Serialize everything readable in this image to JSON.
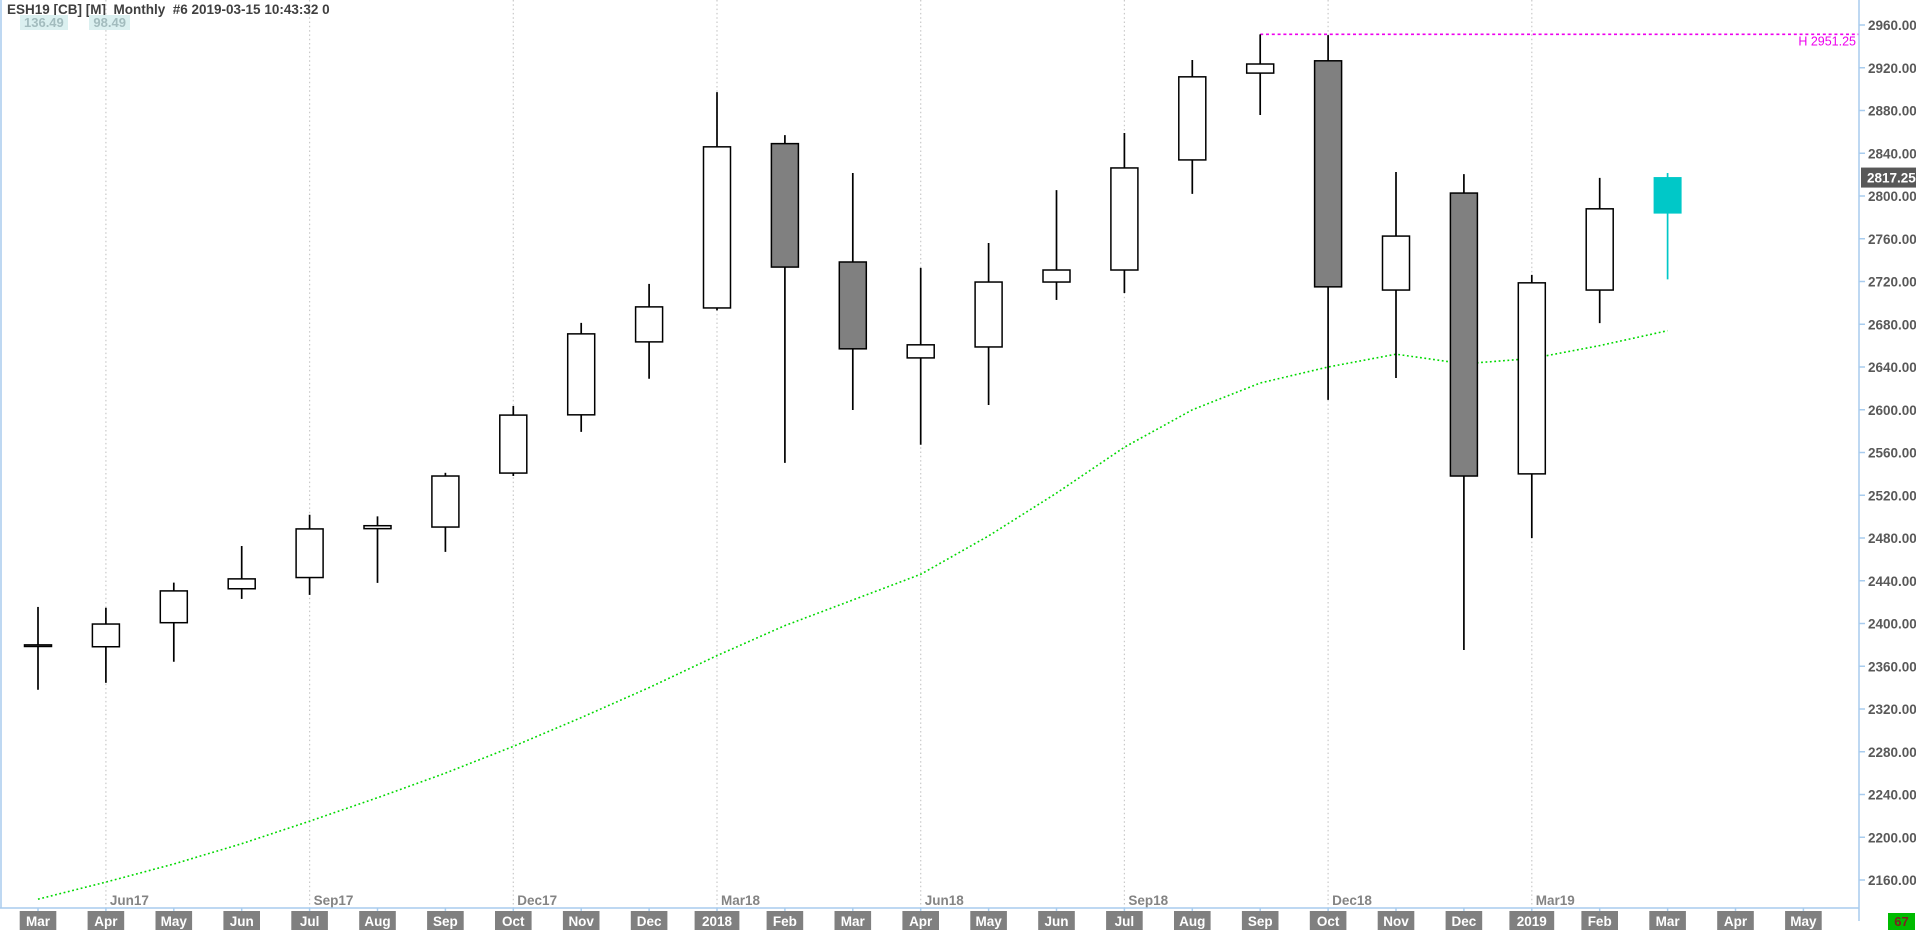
{
  "header": {
    "title": "ESH19 [CB] [M]  Monthly  #6 2019-03-15 10:43:32 0",
    "indicator_values": [
      "136.49",
      "98.49"
    ]
  },
  "counter_badge": "67",
  "colors": {
    "up_fill": "#ffffff",
    "down_fill": "#808080",
    "candle_outline": "#000000",
    "current_candle": "#00c8c8",
    "ma_line": "#00d800",
    "high_line": "#ee00ee",
    "axis_line": "#a8ccee",
    "grid_line": "#c9c9c9",
    "month_badge_bg": "#808080",
    "month_badge_text": "#ffffff",
    "axis_text": "#595959",
    "quarter_label_text": "#848484",
    "last_price_bg": "#585858",
    "last_price_text": "#ffffff"
  },
  "chart_data": {
    "type": "candlestick",
    "title": "ESH19 [CB] [M] Monthly",
    "legend_position": "none",
    "grid": "quarterly-vertical-dotted",
    "y_axis": {
      "min": 2160,
      "max": 2960,
      "step": 40,
      "tick_labels": [
        "2960.00",
        "2920.00",
        "2880.00",
        "2840.00",
        "2800.00",
        "2760.00",
        "2720.00",
        "2680.00",
        "2640.00",
        "2600.00",
        "2560.00",
        "2520.00",
        "2480.00",
        "2440.00",
        "2400.00",
        "2360.00",
        "2320.00",
        "2280.00",
        "2240.00",
        "2200.00",
        "2160.00"
      ]
    },
    "x_axis_labels": [
      "Mar",
      "Apr",
      "May",
      "Jun",
      "Jul",
      "Aug",
      "Sep",
      "Oct",
      "Nov",
      "Dec",
      "2018",
      "Feb",
      "Mar",
      "Apr",
      "May",
      "Jun",
      "Jul",
      "Aug",
      "Sep",
      "Oct",
      "Nov",
      "Dec",
      "2019",
      "Feb",
      "Mar",
      "Apr",
      "May"
    ],
    "quarter_gridlines": [
      {
        "slot": 1,
        "label": "Jun17"
      },
      {
        "slot": 4,
        "label": "Sep17"
      },
      {
        "slot": 7,
        "label": "Dec17"
      },
      {
        "slot": 10,
        "label": "Mar18"
      },
      {
        "slot": 13,
        "label": "Jun18"
      },
      {
        "slot": 16,
        "label": "Sep18"
      },
      {
        "slot": 19,
        "label": "Dec18"
      },
      {
        "slot": 22,
        "label": "Mar19"
      }
    ],
    "candles": [
      {
        "label": "Mar17",
        "o": 2379.0,
        "h": 2415.5,
        "l": 2338.0,
        "c": 2380.0,
        "dir": "up"
      },
      {
        "label": "Apr17",
        "o": 2378.25,
        "h": 2414.75,
        "l": 2344.5,
        "c": 2399.5,
        "dir": "up"
      },
      {
        "label": "May17",
        "o": 2400.75,
        "h": 2438.25,
        "l": 2364.25,
        "c": 2430.5,
        "dir": "up"
      },
      {
        "label": "Jun17",
        "o": 2432.5,
        "h": 2472.5,
        "l": 2423.0,
        "c": 2441.75,
        "dir": "up"
      },
      {
        "label": "Jul17",
        "o": 2443.0,
        "h": 2501.75,
        "l": 2426.75,
        "c": 2488.5,
        "dir": "up"
      },
      {
        "label": "Aug17",
        "o": 2488.75,
        "h": 2500.25,
        "l": 2438.0,
        "c": 2491.5,
        "dir": "up"
      },
      {
        "label": "Sep17",
        "o": 2490.25,
        "h": 2541.0,
        "l": 2467.0,
        "c": 2538.0,
        "dir": "up"
      },
      {
        "label": "Oct17",
        "o": 2540.75,
        "h": 2603.5,
        "l": 2538.0,
        "c": 2595.0,
        "dir": "up"
      },
      {
        "label": "Nov17",
        "o": 2595.25,
        "h": 2681.25,
        "l": 2579.25,
        "c": 2671.0,
        "dir": "up"
      },
      {
        "label": "Dec17",
        "o": 2663.5,
        "h": 2717.75,
        "l": 2629.0,
        "c": 2696.25,
        "dir": "up"
      },
      {
        "label": "Jan18",
        "o": 2695.25,
        "h": 2897.25,
        "l": 2693.0,
        "c": 2846.0,
        "dir": "up"
      },
      {
        "label": "Feb18",
        "o": 2849.0,
        "h": 2857.0,
        "l": 2550.25,
        "c": 2733.5,
        "dir": "down"
      },
      {
        "label": "Mar18",
        "o": 2738.25,
        "h": 2821.5,
        "l": 2599.75,
        "c": 2657.0,
        "dir": "down"
      },
      {
        "label": "Apr18",
        "o": 2648.5,
        "h": 2732.75,
        "l": 2567.25,
        "c": 2660.75,
        "dir": "up"
      },
      {
        "label": "May18",
        "o": 2658.75,
        "h": 2756.0,
        "l": 2604.5,
        "c": 2719.5,
        "dir": "up"
      },
      {
        "label": "Jun18",
        "o": 2719.5,
        "h": 2805.5,
        "l": 2702.75,
        "c": 2730.75,
        "dir": "up"
      },
      {
        "label": "Jul18",
        "o": 2730.75,
        "h": 2859.0,
        "l": 2709.25,
        "c": 2826.25,
        "dir": "up"
      },
      {
        "label": "Aug18",
        "o": 2833.75,
        "h": 2927.25,
        "l": 2802.0,
        "c": 2911.5,
        "dir": "up"
      },
      {
        "label": "Sep18",
        "o": 2915.0,
        "h": 2951.25,
        "l": 2875.75,
        "c": 2923.5,
        "dir": "up"
      },
      {
        "label": "Oct18",
        "o": 2926.5,
        "h": 2950.5,
        "l": 2609.25,
        "c": 2715.0,
        "dir": "down"
      },
      {
        "label": "Nov18",
        "o": 2712.0,
        "h": 2822.5,
        "l": 2629.75,
        "c": 2762.5,
        "dir": "up"
      },
      {
        "label": "Dec18",
        "o": 2802.75,
        "h": 2820.5,
        "l": 2375.25,
        "c": 2538.0,
        "dir": "down"
      },
      {
        "label": "Jan19",
        "o": 2540.0,
        "h": 2726.25,
        "l": 2480.0,
        "c": 2718.75,
        "dir": "up"
      },
      {
        "label": "Feb19",
        "o": 2712.0,
        "h": 2817.0,
        "l": 2681.0,
        "c": 2788.0,
        "dir": "up"
      },
      {
        "label": "Mar19",
        "o": 2784.0,
        "h": 2821.5,
        "l": 2722.0,
        "c": 2817.25,
        "dir": "current"
      }
    ],
    "series": [
      {
        "name": "moving-average",
        "style": "dotted-green",
        "values": [
          2142,
          2158,
          2175,
          2194,
          2215,
          2237,
          2260,
          2285,
          2312,
          2340,
          2370,
          2398,
          2422,
          2446,
          2482,
          2522,
          2565,
          2600,
          2625,
          2640,
          2652,
          2643,
          2648,
          2660,
          2674
        ]
      }
    ],
    "high_line": {
      "label": "H 2951.25",
      "price": 2951.25,
      "start_slot": 18
    },
    "last_price": "2817.25"
  }
}
